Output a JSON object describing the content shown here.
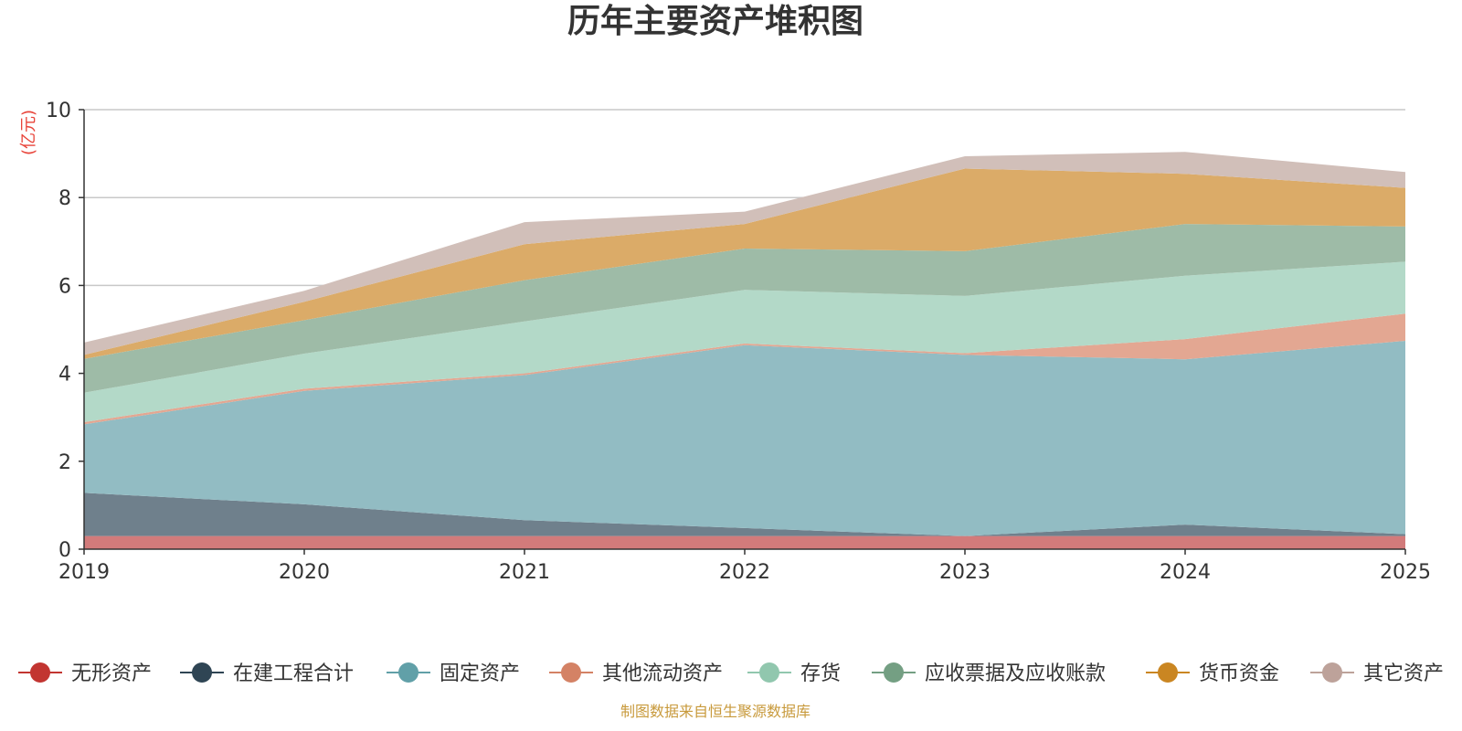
{
  "chart_data": {
    "type": "area",
    "stacked": true,
    "title": "历年主要资产堆积图",
    "unit": "(亿元)",
    "source": "制图数据来自恒生聚源数据库",
    "x": [
      "2019",
      "2020",
      "2021",
      "2022",
      "2023",
      "2024",
      "2025"
    ],
    "ylim": [
      0,
      10
    ],
    "yticks": [
      0,
      2,
      4,
      6,
      8,
      10
    ],
    "grid": true,
    "legend_position": "bottom",
    "series": [
      {
        "name": "无形资产",
        "color": "#c23531",
        "fill": "#d27b7b",
        "values": [
          0.3,
          0.3,
          0.3,
          0.3,
          0.3,
          0.3,
          0.3
        ]
      },
      {
        "name": "在建工程合计",
        "color": "#2f4554",
        "fill": "#6f808c",
        "values": [
          0.98,
          0.72,
          0.36,
          0.18,
          0.0,
          0.26,
          0.04
        ]
      },
      {
        "name": "固定资产",
        "color": "#61a0a8",
        "fill": "#92bcc3",
        "values": [
          1.56,
          2.58,
          3.3,
          4.16,
          4.12,
          3.76,
          4.4
        ]
      },
      {
        "name": "其他流动资产",
        "color": "#d48265",
        "fill": "#e3a792",
        "values": [
          0.05,
          0.05,
          0.04,
          0.04,
          0.04,
          0.46,
          0.62
        ]
      },
      {
        "name": "存货",
        "color": "#91c7ae",
        "fill": "#b3d9c8",
        "values": [
          0.67,
          0.8,
          1.18,
          1.22,
          1.3,
          1.44,
          1.18
        ]
      },
      {
        "name": "应收票据及应收账款",
        "color": "#749f83",
        "fill": "#9ebba7",
        "values": [
          0.77,
          0.76,
          0.94,
          0.94,
          1.02,
          1.18,
          0.8
        ]
      },
      {
        "name": "货币资金",
        "color": "#ca8622",
        "fill": "#dbab68",
        "values": [
          0.09,
          0.42,
          0.82,
          0.56,
          1.88,
          1.14,
          0.88
        ]
      },
      {
        "name": "其它资产",
        "color": "#bda29a",
        "fill": "#d1bfb9",
        "values": [
          0.28,
          0.25,
          0.5,
          0.28,
          0.28,
          0.5,
          0.36
        ]
      }
    ]
  }
}
